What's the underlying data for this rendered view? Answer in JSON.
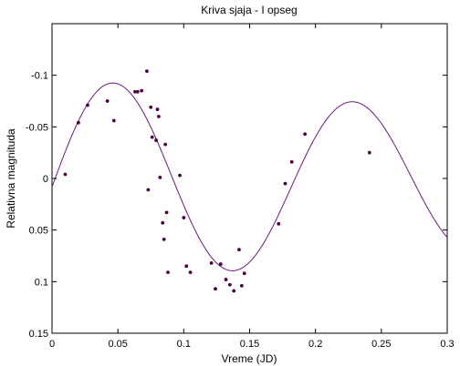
{
  "chart_data": {
    "type": "scatter",
    "title": "Kriva sjaja - I opseg",
    "xlabel": "Vreme (JD)",
    "ylabel": "Relativna magnituda",
    "xlim": [
      0,
      0.3
    ],
    "ylim": [
      -0.15,
      0.15
    ],
    "y_inverted": true,
    "grid": false,
    "x_ticks": [
      0,
      0.05,
      0.1,
      0.15,
      0.2,
      0.25,
      0.3
    ],
    "x_tick_labels": [
      "0",
      "0.05",
      "0.1",
      "0.15",
      "0.2",
      "0.25",
      "0.3"
    ],
    "y_ticks": [
      -0.1,
      -0.05,
      0,
      0.05,
      0.1,
      0.15
    ],
    "y_tick_labels": [
      "-0.1",
      "-0.05",
      "0",
      "0.05",
      "0.1",
      "0.15"
    ],
    "colors": {
      "points": "#4a0040",
      "curve": "#6a1b7a",
      "axes": "#000000"
    },
    "series": [
      {
        "kind": "points",
        "x": [
          0.01,
          0.02,
          0.027,
          0.042,
          0.047,
          0.063,
          0.065,
          0.068,
          0.072,
          0.073,
          0.075,
          0.076,
          0.079,
          0.08,
          0.081,
          0.082,
          0.084,
          0.085,
          0.086,
          0.087,
          0.088,
          0.097,
          0.1,
          0.102,
          0.105,
          0.121,
          0.124,
          0.128,
          0.132,
          0.135,
          0.138,
          0.142,
          0.144,
          0.146,
          0.172,
          0.177,
          0.182,
          0.192,
          0.241
        ],
        "y": [
          -0.004,
          -0.054,
          -0.071,
          -0.075,
          -0.056,
          -0.084,
          -0.084,
          -0.085,
          -0.104,
          0.011,
          -0.069,
          -0.04,
          -0.037,
          -0.067,
          -0.06,
          -0.001,
          0.043,
          0.059,
          -0.033,
          0.033,
          0.091,
          -0.003,
          0.038,
          0.085,
          0.091,
          0.082,
          0.107,
          0.083,
          0.098,
          0.103,
          0.109,
          0.069,
          0.104,
          0.092,
          0.044,
          0.005,
          -0.016,
          -0.043,
          -0.025
        ]
      },
      {
        "kind": "fit-curve",
        "offset": 0.003,
        "amplitude": 0.0955,
        "min_at": 0.047,
        "period": 0.182,
        "amp_drift_per_unit_x": -0.1,
        "x_range": [
          0,
          0.3
        ]
      }
    ]
  }
}
